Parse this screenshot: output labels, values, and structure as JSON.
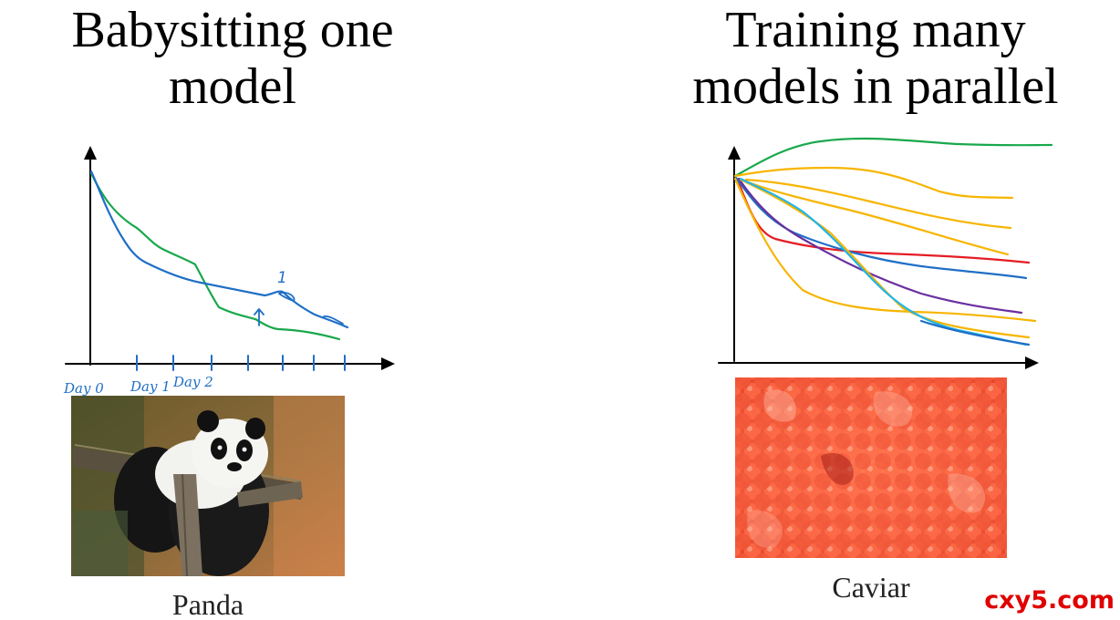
{
  "left_panel": {
    "title_line1": "Babysitting one",
    "title_line2": "model",
    "x_tick_labels": [
      "Day 0",
      "Day 1",
      "Day 2"
    ],
    "annotation": "1",
    "image_caption": "Panda"
  },
  "right_panel": {
    "title_line1": "Training many",
    "title_line2": "models in parallel",
    "image_caption": "Caviar"
  },
  "colors": {
    "blue": "#1f6fc5",
    "green": "#19a84c",
    "orange": "#f7b500",
    "red": "#e51c23",
    "purple": "#6a2fa0",
    "cyan": "#1fb5e8"
  },
  "watermark": "cxy5.com"
}
